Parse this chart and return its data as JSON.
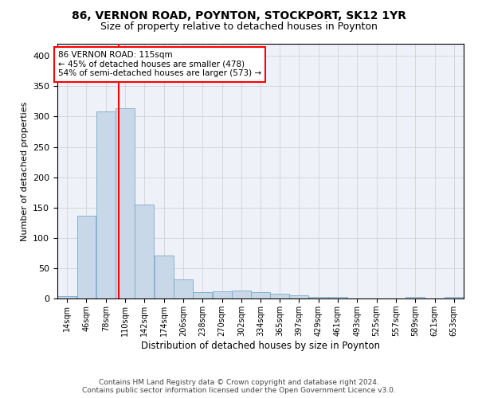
{
  "title1": "86, VERNON ROAD, POYNTON, STOCKPORT, SK12 1YR",
  "title2": "Size of property relative to detached houses in Poynton",
  "xlabel": "Distribution of detached houses by size in Poynton",
  "ylabel": "Number of detached properties",
  "footer1": "Contains HM Land Registry data © Crown copyright and database right 2024.",
  "footer2": "Contains public sector information licensed under the Open Government Licence v3.0.",
  "annotation_line1": "86 VERNON ROAD: 115sqm",
  "annotation_line2": "← 45% of detached houses are smaller (478)",
  "annotation_line3": "54% of semi-detached houses are larger (573) →",
  "property_sqm": 115,
  "bar_color": "#c8d8e8",
  "bar_edge_color": "#7aaac8",
  "vline_color": "red",
  "grid_color": "#cccccc",
  "background_color": "#eef2f8",
  "bins": [
    14,
    46,
    78,
    110,
    142,
    174,
    206,
    238,
    270,
    302,
    334,
    365,
    397,
    429,
    461,
    493,
    525,
    557,
    589,
    621,
    653
  ],
  "bin_labels": [
    "14sqm",
    "46sqm",
    "78sqm",
    "110sqm",
    "142sqm",
    "174sqm",
    "206sqm",
    "238sqm",
    "270sqm",
    "302sqm",
    "334sqm",
    "365sqm",
    "397sqm",
    "429sqm",
    "461sqm",
    "493sqm",
    "525sqm",
    "557sqm",
    "589sqm",
    "621sqm",
    "653sqm"
  ],
  "bar_heights": [
    4,
    136,
    309,
    314,
    155,
    71,
    32,
    10,
    12,
    13,
    10,
    8,
    5,
    3,
    2,
    0,
    0,
    0,
    2,
    0,
    2
  ],
  "ylim": [
    0,
    420
  ],
  "yticks": [
    0,
    50,
    100,
    150,
    200,
    250,
    300,
    350,
    400
  ],
  "bin_width": 32
}
